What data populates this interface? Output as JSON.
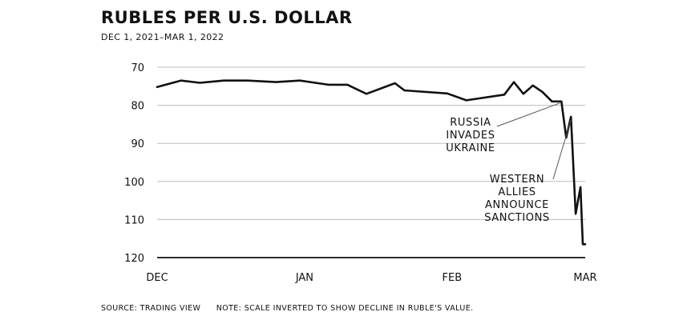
{
  "chart_data": {
    "type": "line",
    "title": "RUBLES PER U.S. DOLLAR",
    "subtitle": "DEC 1, 2021–MAR 1, 2022",
    "ylim": [
      70,
      120
    ],
    "y_inverted": true,
    "y_ticks": [
      70,
      80,
      90,
      100,
      110,
      120
    ],
    "x_tick_labels": [
      {
        "label": "DEC",
        "date": "2021-12-01"
      },
      {
        "label": "JAN",
        "date": "2022-01-01"
      },
      {
        "label": "FEB",
        "date": "2022-02-01"
      },
      {
        "label": "MAR",
        "date": "2022-03-01"
      }
    ],
    "grid": true,
    "series": [
      {
        "x": [
          "2021-12-01",
          "2021-12-06",
          "2021-12-10",
          "2021-12-15",
          "2021-12-20",
          "2021-12-26",
          "2021-12-31",
          "2022-01-06",
          "2022-01-10",
          "2022-01-14",
          "2022-01-20",
          "2022-01-22",
          "2022-01-31",
          "2022-02-04",
          "2022-02-12",
          "2022-02-14",
          "2022-02-16",
          "2022-02-18",
          "2022-02-20",
          "2022-02-22",
          "2022-02-24",
          "2022-02-25",
          "2022-02-26",
          "2022-02-27",
          "2022-02-28",
          "2022-02-28T12",
          "2022-03-01"
        ],
        "y": [
          75.2,
          73.5,
          74.1,
          73.5,
          73.5,
          73.9,
          73.5,
          74.6,
          74.6,
          77.0,
          74.2,
          76.1,
          76.9,
          78.7,
          77.2,
          73.9,
          77.0,
          74.8,
          76.5,
          79.0,
          79.0,
          88.5,
          83.0,
          108.5,
          101.5,
          116.5,
          116.5
        ]
      }
    ],
    "annotations": [
      {
        "text_lines": [
          "RUSSIA",
          "INVADES",
          "UKRAINE"
        ],
        "points_to": "2022-02-24"
      },
      {
        "text_lines": [
          "WESTERN",
          "ALLIES",
          "ANNOUNCE",
          "SANCTIONS"
        ],
        "points_to": "2022-02-26"
      }
    ]
  },
  "footer": {
    "source": "SOURCE: TRADING VIEW",
    "note": "NOTE: SCALE INVERTED TO SHOW DECLINE IN RUBLE'S VALUE."
  }
}
